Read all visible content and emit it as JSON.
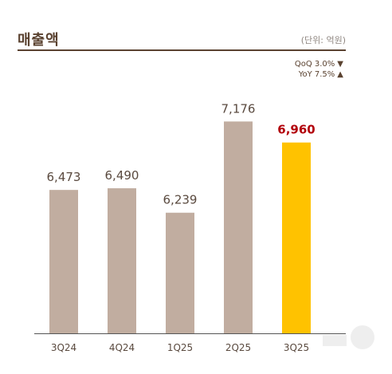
{
  "header": {
    "title": "매출액",
    "unit": "(단위: 억원)"
  },
  "change": {
    "qoq_label": "QoQ 3.0%",
    "qoq_icon": "triangle-down-icon",
    "yoy_label": "YoY 7.5%",
    "yoy_icon": "triangle-up-icon"
  },
  "colors": {
    "bar": "#c1ada0",
    "highlight_bar": "#ffc200",
    "highlight_label": "#b2000a",
    "label": "#5a4a3f",
    "axis": "#555555",
    "header": "#5a4230"
  },
  "chart_data": {
    "type": "bar",
    "title": "매출액",
    "categories": [
      "3Q24",
      "4Q24",
      "1Q25",
      "2Q25",
      "3Q25"
    ],
    "values": [
      6473,
      6490,
      6239,
      7176,
      6960
    ],
    "value_labels": [
      "6,473",
      "6,490",
      "6,239",
      "7,176",
      "6,960"
    ],
    "highlight_index": 4,
    "ylim": [
      5000,
      7400
    ],
    "grid": false,
    "legend": "none",
    "unit": "(단위: 억원)"
  }
}
